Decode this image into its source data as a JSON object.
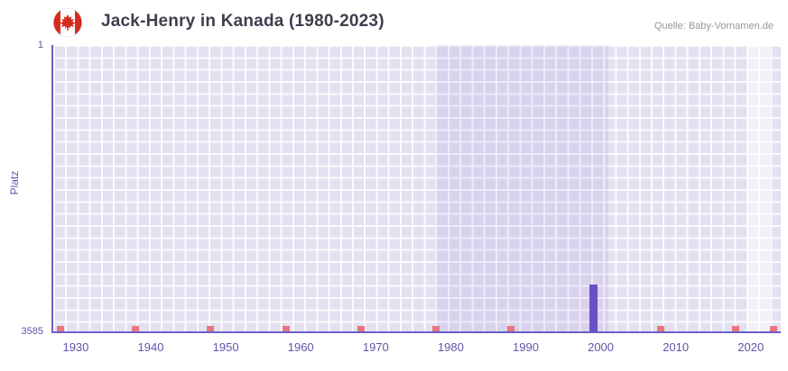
{
  "header": {
    "title": "Jack-Henry in Kanada (1980-2023)",
    "source": "Quelle: Baby-Vornamen.de",
    "flag_icon": "canada-flag-icon"
  },
  "chart_data": {
    "type": "bar",
    "title": "Jack-Henry in Kanada (1980-2023)",
    "xlabel": "",
    "ylabel": "Platz",
    "y_axis_inverted": true,
    "x_range": [
      1927,
      2024
    ],
    "y_range": [
      1,
      3585
    ],
    "x_ticks": [
      "1930",
      "1940",
      "1950",
      "1960",
      "1970",
      "1980",
      "1990",
      "2000",
      "2010",
      "2020"
    ],
    "y_ticks": [
      "1",
      "3585"
    ],
    "grid": true,
    "legend": false,
    "bars": [
      {
        "year": 1999,
        "rank": 3000
      }
    ],
    "bar_color": "#6b4fc8",
    "no_rank_marker_years": [
      1928,
      1938,
      1948,
      1958,
      1968,
      1978,
      1988,
      2008,
      2018,
      2023
    ],
    "marker_color": "#e87580",
    "highlight_bands": [
      {
        "from": 1978,
        "to": 2001,
        "color": "rgba(106,80,200,0.09)"
      },
      {
        "from": 2019.5,
        "to": 2022.5,
        "color": "rgba(255,255,255,0.55)"
      }
    ],
    "axis_color": "#6c5fc7",
    "tick_label_color": "#5f55ab",
    "plot_background": "#e3e0f0"
  }
}
